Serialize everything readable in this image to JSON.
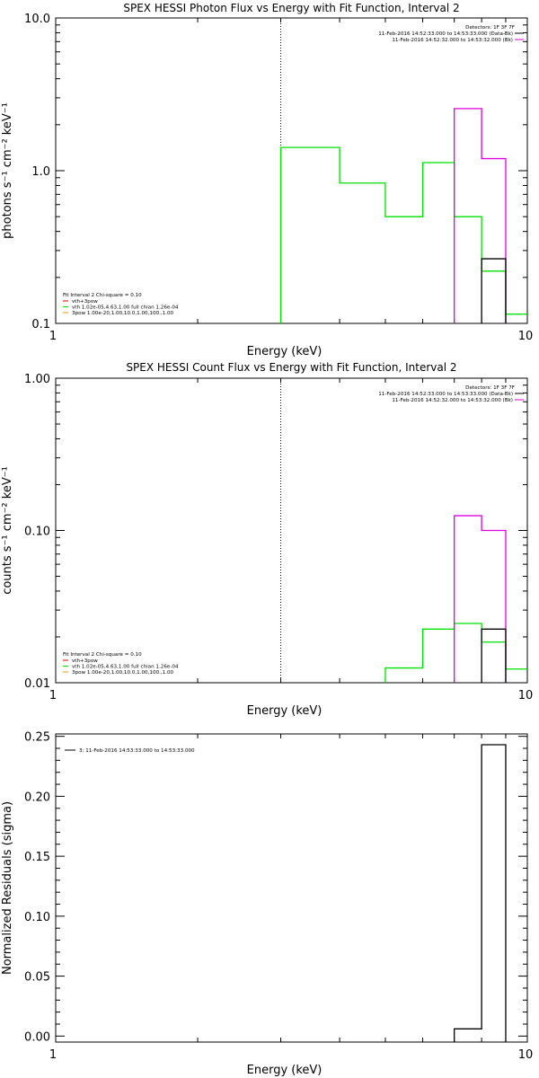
{
  "colors": {
    "black": "#000000",
    "green": "#00e000",
    "magenta": "#e000e0",
    "orange": "#e0a000",
    "red": "#e00000"
  },
  "chart_data": [
    {
      "type": "line",
      "title": "SPEX HESSI Photon Flux vs Energy with Fit Function, Interval 2",
      "xlabel": "Energy (keV)",
      "ylabel": "photons s⁻¹ cm⁻² keV⁻¹",
      "xscale": "log",
      "yscale": "log",
      "xlim": [
        1,
        10
      ],
      "ylim": [
        0.1,
        10
      ],
      "xticks": [
        {
          "v": 1,
          "label": "1"
        },
        {
          "v": 10,
          "label": "10"
        }
      ],
      "yticks": [
        {
          "v": 0.1,
          "label": "0.1"
        },
        {
          "v": 1,
          "label": "1.0"
        },
        {
          "v": 10,
          "label": "10.0"
        }
      ],
      "vline": 3,
      "legend_top": {
        "header": "Detectors: 1F 3F 7F",
        "entries": [
          {
            "text": "11-Feb-2016 14:52:33.000 to 14:53:33.000 (Data-Bk)",
            "color": "#000000"
          },
          {
            "text": "11-Feb-2016 14:52:32.000 to 14:53:32.000 (Bk)",
            "color": "#e000e0"
          }
        ]
      },
      "legend_bottom": {
        "header": "Fit Interval 2   Chi-square = 0.10",
        "entries": [
          {
            "text": "vth+3pow",
            "color": "#e00000"
          },
          {
            "text": "vth 1.02e-05,4.63,1.00  full chian 1.26e-04",
            "color": "#00e000"
          },
          {
            "text": "3pow 1.00e-20,1.00,10.0,1.00,100.,1.00",
            "color": "#e0a000"
          }
        ]
      },
      "series": [
        {
          "color": "#00e000",
          "edges": [
            3.0,
            4.0,
            5.0,
            6.0,
            7.0,
            8.0,
            9.0,
            10.0
          ],
          "values": [
            1.42,
            0.83,
            0.5,
            1.13,
            0.5,
            0.22,
            0.115
          ]
        },
        {
          "color": "#e000e0",
          "edges": [
            7.0,
            8.0,
            9.0
          ],
          "values": [
            2.55,
            1.2
          ]
        },
        {
          "color": "#000000",
          "edges": [
            8.0,
            9.0
          ],
          "values": [
            0.265
          ]
        }
      ]
    },
    {
      "type": "line",
      "title": "SPEX HESSI Count Flux vs Energy with Fit Function, Interval 2",
      "xlabel": "Energy (keV)",
      "ylabel": "counts s⁻¹ cm⁻² keV⁻¹",
      "xscale": "log",
      "yscale": "log",
      "xlim": [
        1,
        10
      ],
      "ylim": [
        0.01,
        1
      ],
      "xticks": [
        {
          "v": 1,
          "label": "1"
        },
        {
          "v": 10,
          "label": "10"
        }
      ],
      "yticks": [
        {
          "v": 0.01,
          "label": "0.01"
        },
        {
          "v": 0.1,
          "label": "0.10"
        },
        {
          "v": 1,
          "label": "1.00"
        }
      ],
      "vline": 3,
      "legend_top": {
        "header": "Detectors: 1F 3F 7F",
        "entries": [
          {
            "text": "11-Feb-2016 14:52:33.000 to 14:53:33.000 (Data-Bk)",
            "color": "#000000"
          },
          {
            "text": "11-Feb-2016 14:52:32.000 to 14:53:32.000 (Bk)",
            "color": "#e000e0"
          }
        ]
      },
      "legend_bottom": {
        "header": "Fit Interval 2   Chi-square = 0.10",
        "entries": [
          {
            "text": "vth+3pow",
            "color": "#e00000"
          },
          {
            "text": "vth 1.02e-05,4.63,1.00  full chian 1.26e-04",
            "color": "#00e000"
          },
          {
            "text": "3pow 1.00e-20,1.00,10.0,1.00,100.,1.00",
            "color": "#e0a000"
          }
        ]
      },
      "series": [
        {
          "color": "#00e000",
          "edges": [
            5.0,
            6.0,
            7.0,
            8.0,
            9.0,
            10.0
          ],
          "values": [
            0.0125,
            0.0225,
            0.0245,
            0.0185,
            0.0123
          ]
        },
        {
          "color": "#e000e0",
          "edges": [
            7.0,
            8.0,
            9.0
          ],
          "values": [
            0.125,
            0.1
          ]
        },
        {
          "color": "#000000",
          "edges": [
            8.0,
            9.0
          ],
          "values": [
            0.0225
          ]
        }
      ]
    },
    {
      "type": "line",
      "title": "",
      "xlabel": "Energy (keV)",
      "ylabel": "Normalized Residuals (sigma)",
      "xscale": "log",
      "yscale": "linear",
      "xlim": [
        1,
        10
      ],
      "ylim": [
        -0.005,
        0.252
      ],
      "xticks": [
        {
          "v": 1,
          "label": "1"
        },
        {
          "v": 10,
          "label": "10"
        }
      ],
      "yticks": [
        {
          "v": 0.0,
          "label": "0.00"
        },
        {
          "v": 0.05,
          "label": "0.05"
        },
        {
          "v": 0.1,
          "label": "0.10"
        },
        {
          "v": 0.15,
          "label": "0.15"
        },
        {
          "v": 0.2,
          "label": "0.20"
        },
        {
          "v": 0.25,
          "label": "0.25"
        }
      ],
      "legend_top_left": {
        "entries": [
          {
            "text": "3: 11-Feb-2016 14:53:33.000 to 14:53:33.000",
            "color": "#000000"
          }
        ]
      },
      "series": [
        {
          "color": "#000000",
          "edges": [
            7.0,
            8.0,
            9.0
          ],
          "values": [
            0.006,
            0.243
          ]
        }
      ]
    }
  ]
}
